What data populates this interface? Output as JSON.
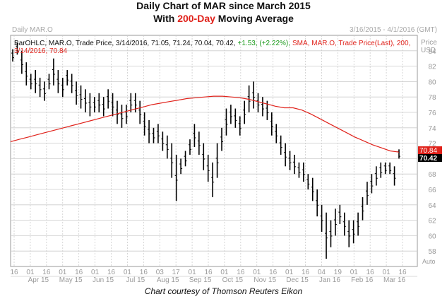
{
  "title_line1": "Daily Chart of MAR since March 2015",
  "title_line2_prefix": "With ",
  "title_line2_highlight": "200-Day",
  "title_line2_suffix": " Moving Average",
  "header_left": "Daily MAR.O",
  "header_right": "3/16/2015 - 4/1/2016 (GMT)",
  "info_black": "BarOHLC, MAR.O, Trade Price, 3/14/2016, 71.05, 71.24, 70.04, 70.42,",
  "info_green": "+1.53, (+2.22%),",
  "info_red": "SMA, MAR.O, Trade Price(Last), 200,",
  "info_red2": "3/14/2016, 70.84",
  "price_label": "Price",
  "currency_label": "USD",
  "auto_label": "Auto",
  "credit": "Chart courtesy of Thomson Reuters Eikon",
  "colors": {
    "bars": "#000000",
    "sma": "#e0221b",
    "grid": "#bfbfbf",
    "axis_text": "#9a9a9a"
  },
  "chart_data": {
    "type": "line",
    "ylim": [
      56,
      86
    ],
    "y_ticks": [
      58,
      60,
      62,
      64,
      66,
      68,
      70,
      72,
      74,
      76,
      78,
      80,
      82,
      84
    ],
    "x_ticks": [
      "16",
      "01",
      "16",
      "01",
      "16",
      "01",
      "16",
      "01",
      "16",
      "03",
      "17",
      "01",
      "16",
      "01",
      "16",
      "01",
      "16",
      "01",
      "16",
      "04",
      "19",
      "01",
      "16",
      "01",
      "16"
    ],
    "months": [
      "Apr 15",
      "May 15",
      "Jun 15",
      "Jul 15",
      "Aug 15",
      "Sep 15",
      "Oct 15",
      "Nov 15",
      "Dec 15",
      "Jan 16",
      "Feb 16",
      "Mar 16"
    ],
    "last_price_label": "70.42",
    "last_sma_label": "70.84",
    "price_bars": [
      [
        84.2,
        82.6
      ],
      [
        85.0,
        83.5
      ],
      [
        84.0,
        81.0
      ],
      [
        82.5,
        79.5
      ],
      [
        81.0,
        79.0
      ],
      [
        81.5,
        78.5
      ],
      [
        80.5,
        78.0
      ],
      [
        80.0,
        77.5
      ],
      [
        81.0,
        79.0
      ],
      [
        83.0,
        79.5
      ],
      [
        81.5,
        78.5
      ],
      [
        80.5,
        78.0
      ],
      [
        81.5,
        79.5
      ],
      [
        81.0,
        78.5
      ],
      [
        80.0,
        77.0
      ],
      [
        79.5,
        76.5
      ],
      [
        79.0,
        76.0
      ],
      [
        78.5,
        75.5
      ],
      [
        78.0,
        76.0
      ],
      [
        78.5,
        76.0
      ],
      [
        78.0,
        75.5
      ],
      [
        79.0,
        76.5
      ],
      [
        78.5,
        75.5
      ],
      [
        77.5,
        74.5
      ],
      [
        77.0,
        74.0
      ],
      [
        77.0,
        74.5
      ],
      [
        78.5,
        76.0
      ],
      [
        78.5,
        76.0
      ],
      [
        77.5,
        74.5
      ],
      [
        76.0,
        73.0
      ],
      [
        75.0,
        72.0
      ],
      [
        74.0,
        72.0
      ],
      [
        74.5,
        72.0
      ],
      [
        73.5,
        71.0
      ],
      [
        73.0,
        70.0
      ],
      [
        72.0,
        67.5
      ],
      [
        70.5,
        64.5
      ],
      [
        70.0,
        68.0
      ],
      [
        71.0,
        69.0
      ],
      [
        72.5,
        70.5
      ],
      [
        74.5,
        71.5
      ],
      [
        73.5,
        70.5
      ],
      [
        72.0,
        68.5
      ],
      [
        70.5,
        67.0
      ],
      [
        69.5,
        65.0
      ],
      [
        72.0,
        67.5
      ],
      [
        74.0,
        71.0
      ],
      [
        76.5,
        73.0
      ],
      [
        77.0,
        74.5
      ],
      [
        76.5,
        74.0
      ],
      [
        75.5,
        73.0
      ],
      [
        77.5,
        74.5
      ],
      [
        79.5,
        76.0
      ],
      [
        80.0,
        76.5
      ],
      [
        78.5,
        76.0
      ],
      [
        78.0,
        75.5
      ],
      [
        77.5,
        75.0
      ],
      [
        76.0,
        73.0
      ],
      [
        74.5,
        72.0
      ],
      [
        73.0,
        70.5
      ],
      [
        72.0,
        69.0
      ],
      [
        71.0,
        68.5
      ],
      [
        70.5,
        68.0
      ],
      [
        69.5,
        67.5
      ],
      [
        69.5,
        67.0
      ],
      [
        68.0,
        66.0
      ],
      [
        67.5,
        64.5
      ],
      [
        66.0,
        62.5
      ],
      [
        64.0,
        60.5
      ],
      [
        63.0,
        57.0
      ],
      [
        62.0,
        58.5
      ],
      [
        63.5,
        60.0
      ],
      [
        64.0,
        61.5
      ],
      [
        63.0,
        60.0
      ],
      [
        62.0,
        58.5
      ],
      [
        62.0,
        59.0
      ],
      [
        63.0,
        60.0
      ],
      [
        65.0,
        62.0
      ],
      [
        67.0,
        64.0
      ],
      [
        68.0,
        65.5
      ],
      [
        69.0,
        66.5
      ],
      [
        69.5,
        67.5
      ],
      [
        69.5,
        68.0
      ],
      [
        69.5,
        68.0
      ],
      [
        69.0,
        66.5
      ],
      [
        71.2,
        70.0
      ]
    ],
    "sma": [
      72.2,
      72.5,
      72.8,
      73.1,
      73.4,
      73.7,
      74.0,
      74.3,
      74.6,
      74.9,
      75.2,
      75.5,
      75.8,
      76.1,
      76.4,
      76.7,
      77.0,
      77.2,
      77.4,
      77.6,
      77.8,
      77.9,
      78.0,
      78.1,
      78.1,
      78.0,
      77.9,
      77.7,
      77.4,
      77.1,
      76.8,
      76.6,
      76.6,
      76.3,
      75.8,
      75.2,
      74.6,
      74.0,
      73.4,
      72.8,
      72.3,
      71.8,
      71.4,
      71.0,
      70.84
    ]
  }
}
